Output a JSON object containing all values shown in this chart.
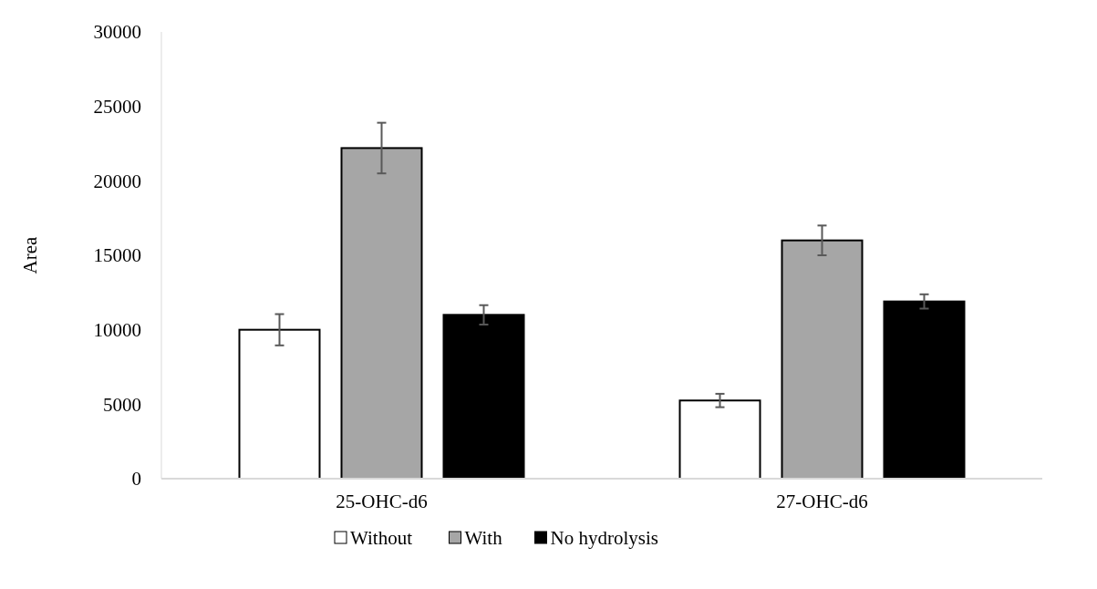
{
  "chart_data": {
    "type": "bar",
    "ylabel": "Area",
    "categories": [
      "25-OHC-d6",
      "27-OHC-d6"
    ],
    "series": [
      {
        "name": "Without",
        "color": "#ffffff",
        "values": [
          10000,
          5250
        ],
        "errors": [
          1050,
          450
        ]
      },
      {
        "name": "With",
        "color": "#a6a6a6",
        "values": [
          22200,
          16000
        ],
        "errors": [
          1700,
          1000
        ]
      },
      {
        "name": "No hydrolysis",
        "color": "#000000",
        "values": [
          11000,
          11900
        ],
        "errors": [
          650,
          480
        ]
      }
    ],
    "ylim": [
      0,
      30000
    ],
    "yticks": [
      0,
      5000,
      10000,
      15000,
      20000,
      25000,
      30000
    ],
    "grid": false,
    "legend": "bottom"
  }
}
